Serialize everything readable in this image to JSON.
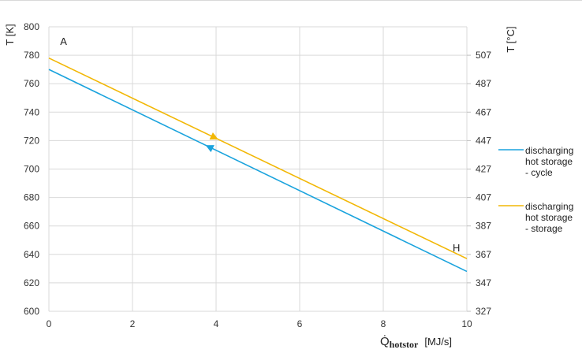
{
  "chart_data": {
    "type": "line",
    "title": "",
    "xlabel_symbol": "Q̇",
    "xlabel_sub": "hotstor",
    "xlabel_unit": "[MJ/s]",
    "ylabel": "T [K]",
    "y2label": "T [°C]",
    "xlim": [
      0,
      10
    ],
    "ylim": [
      600,
      800
    ],
    "x_ticks": [
      0,
      2,
      4,
      6,
      8,
      10
    ],
    "y_ticks": [
      600,
      620,
      640,
      660,
      680,
      700,
      720,
      740,
      760,
      780,
      800
    ],
    "y2_ticks": [
      327,
      347,
      367,
      387,
      407,
      427,
      447,
      467,
      487,
      507
    ],
    "grid": true,
    "legend_position": "right",
    "series": [
      {
        "name_lines": [
          "discharging",
          "hot storage",
          "- cycle"
        ],
        "color": "#1aa3dd",
        "x": [
          0,
          10
        ],
        "y": [
          770,
          628
        ],
        "arrow_at_x": 3.85,
        "arrow_direction": "left"
      },
      {
        "name_lines": [
          "discharging",
          "hot storage",
          "- storage"
        ],
        "color": "#f2b705",
        "x": [
          0,
          10
        ],
        "y": [
          778,
          637
        ],
        "arrow_at_x": 3.95,
        "arrow_direction": "right"
      }
    ],
    "annotations": [
      {
        "text": "A",
        "x": 0.35,
        "y": 790
      },
      {
        "text": "H",
        "x": 9.75,
        "y": 645
      }
    ]
  }
}
